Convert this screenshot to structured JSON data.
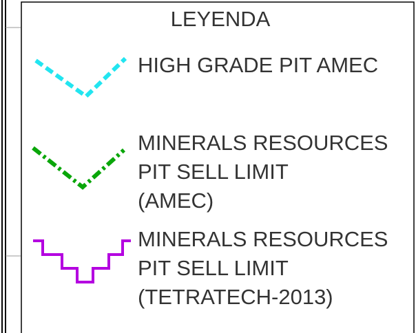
{
  "title": "LEYENDA",
  "items": [
    {
      "lines": [
        "HIGH GRADE PIT AMEC"
      ]
    },
    {
      "lines": [
        "MINERALS RESOURCES",
        "PIT SELL LIMIT",
        "(AMEC)"
      ]
    },
    {
      "lines": [
        "MINERALS RESOURCES",
        "PIT SELL LIMIT",
        "(TETRATECH-2013)"
      ]
    }
  ]
}
